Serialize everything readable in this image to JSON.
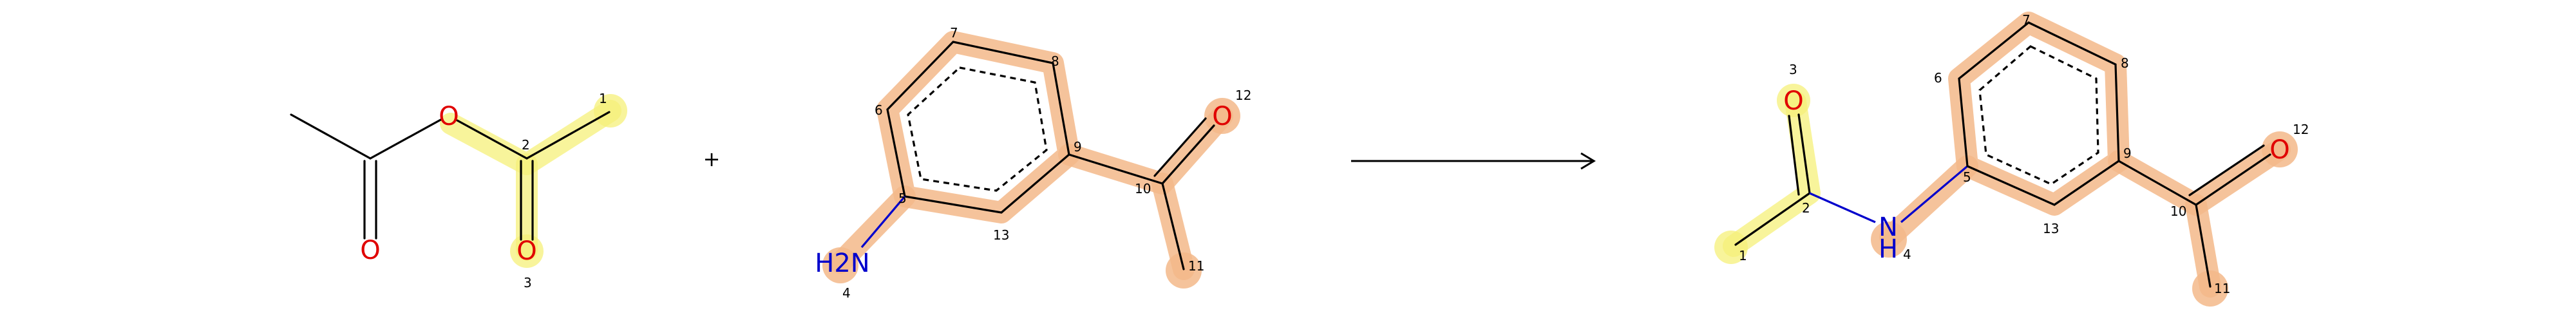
{
  "reaction": {
    "plus_sign": "+",
    "reactant1": {
      "labels": {
        "o_ester": "O",
        "o_carbonyl1": "O",
        "o_carbonyl2": "O"
      },
      "indices": {
        "c1": "1",
        "c2": "2",
        "o3": "3"
      }
    },
    "reactant2": {
      "labels": {
        "o_ketone": "O",
        "n_amine": "H2N"
      },
      "indices": {
        "n4": "4",
        "c5": "5",
        "c6": "6",
        "c7": "7",
        "c8": "8",
        "c9": "9",
        "c10": "10",
        "c11": "11",
        "o12": "12",
        "c13": "13"
      }
    },
    "product": {
      "labels": {
        "o_amide": "O",
        "n_amide": "N",
        "h_amide": "H",
        "o_ketone": "O"
      },
      "indices": {
        "c1": "1",
        "c2": "2",
        "o3": "3",
        "n4": "4",
        "c5": "5",
        "c6": "6",
        "c7": "7",
        "c8": "8",
        "c9": "9",
        "c10": "10",
        "c11": "11",
        "o12": "12",
        "c13": "13"
      }
    },
    "colors": {
      "yellow_highlight": "#f6f07a",
      "orange_highlight": "#f3b98a",
      "oxygen": "#e00000",
      "nitrogen": "#0000cc"
    }
  }
}
